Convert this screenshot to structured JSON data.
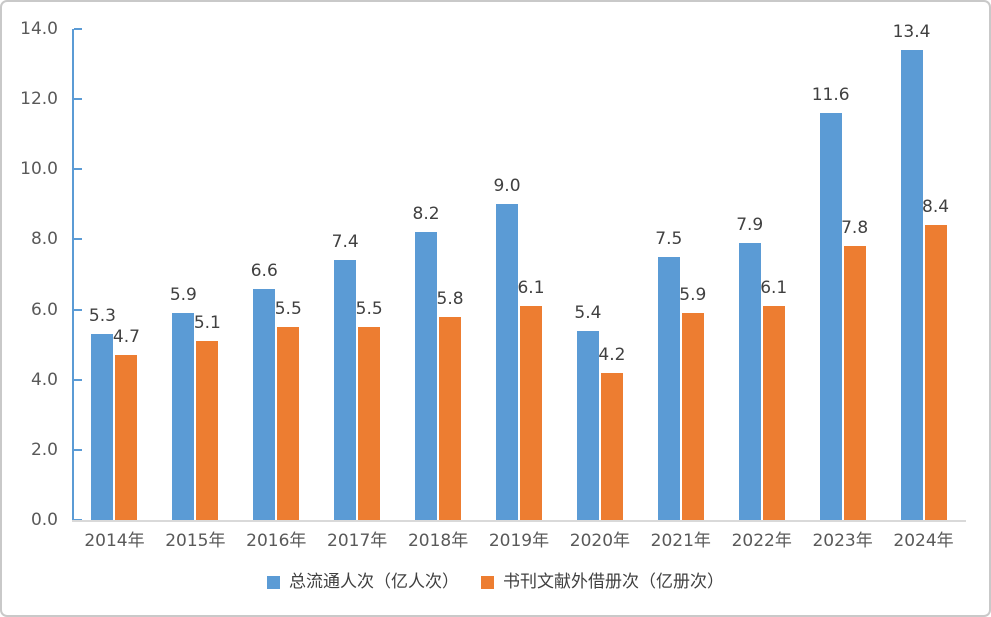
{
  "chart_data": {
    "type": "bar",
    "categories": [
      "2014年",
      "2015年",
      "2016年",
      "2017年",
      "2018年",
      "2019年",
      "2020年",
      "2021年",
      "2022年",
      "2023年",
      "2024年"
    ],
    "series": [
      {
        "name": "总流通人次（亿人次）",
        "color": "#5B9BD5",
        "values": [
          5.3,
          5.9,
          6.6,
          7.4,
          8.2,
          9.0,
          5.4,
          7.5,
          7.9,
          11.6,
          13.4
        ]
      },
      {
        "name": "书刊文献外借册次（亿册次）",
        "color": "#ED7D31",
        "values": [
          4.7,
          5.1,
          5.5,
          5.5,
          5.8,
          6.1,
          4.2,
          5.9,
          6.1,
          7.8,
          8.4
        ]
      }
    ],
    "title": "",
    "xlabel": "",
    "ylabel": "",
    "ylim": [
      0,
      14
    ],
    "ytick_step": 2,
    "ytick_labels": [
      "0.0",
      "2.0",
      "4.0",
      "6.0",
      "8.0",
      "10.0",
      "12.0",
      "14.0"
    ],
    "value_label_decimals": 1,
    "grid": "off",
    "legend_position": "bottom-center",
    "colors": {
      "y_axis_line": "#5B9BD5",
      "x_axis_line": "#D9D9D9",
      "tick_label": "#595959",
      "value_label": "#404040",
      "frame_border": "#c9c9c9",
      "background": "#ffffff"
    }
  }
}
